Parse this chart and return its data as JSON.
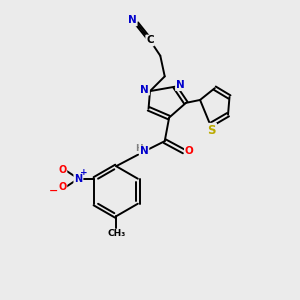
{
  "background_color": "#ebebeb",
  "figsize": [
    3.0,
    3.0
  ],
  "dpi": 100,
  "atom_colors": {
    "C": "#000000",
    "N": "#0000cc",
    "O": "#ff0000",
    "S": "#bbaa00",
    "H": "#808080"
  },
  "bond_lw": 1.4,
  "font_size": 7.5
}
